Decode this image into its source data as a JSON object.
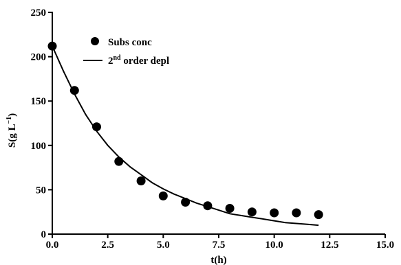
{
  "chart_data": {
    "type": "scatter",
    "title": "",
    "xlabel": "t(h)",
    "ylabel": "S(g L",
    "ylabel_sup": "−1",
    "ylabel_close": ")",
    "xlim": [
      0,
      15
    ],
    "ylim": [
      0,
      250
    ],
    "xticks": [
      "0.0",
      "2.5",
      "5.0",
      "7.5",
      "10.0",
      "12.5",
      "15.0"
    ],
    "yticks": [
      "0",
      "50",
      "100",
      "150",
      "200",
      "250"
    ],
    "grid": false,
    "legend_position": "top-left",
    "series": [
      {
        "name": "Subs conc",
        "marker": "circle",
        "color": "#000000",
        "x": [
          0,
          1,
          2,
          3,
          4,
          5,
          6,
          7,
          8,
          9,
          10,
          11,
          12
        ],
        "y": [
          212,
          162,
          121,
          82,
          60,
          43,
          36,
          32,
          29,
          25,
          24,
          24,
          22
        ]
      },
      {
        "name_prefix": "2",
        "name_sup": "nd",
        "name_suffix": " order depl",
        "marker": "line",
        "color": "#000000",
        "x": [
          0,
          0.5,
          1,
          1.5,
          2,
          2.5,
          3,
          3.5,
          4,
          4.5,
          5,
          5.5,
          6,
          6.5,
          7,
          7.5,
          8,
          8.5,
          9,
          9.5,
          10,
          10.5,
          11,
          11.5,
          12
        ],
        "y": [
          212,
          184,
          158,
          135,
          116,
          100,
          87,
          76,
          67,
          58,
          51,
          45,
          40,
          35,
          31,
          27,
          23,
          21,
          19,
          17,
          15,
          13,
          12,
          11,
          10
        ]
      }
    ]
  }
}
